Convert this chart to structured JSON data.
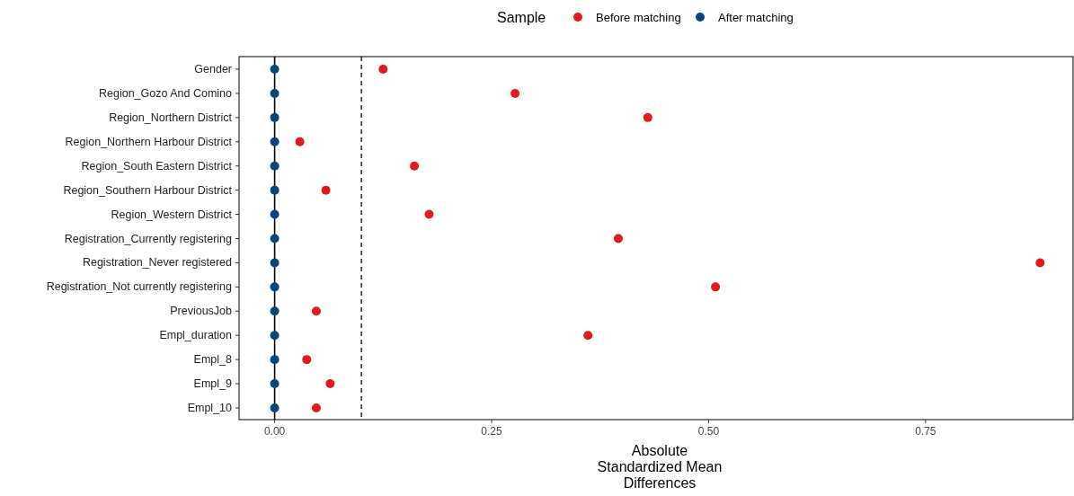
{
  "chart_data": {
    "type": "scatter",
    "orientation": "horizontal",
    "xlabel": "Absolute Standardized Mean Differences",
    "legend_title": "Sample",
    "legend": "top",
    "marker": "circle",
    "grid": false,
    "categories": [
      "Gender",
      "Region_Gozo And Comino",
      "Region_Northern District",
      "Region_Northern Harbour District",
      "Region_South Eastern District",
      "Region_Southern Harbour District",
      "Region_Western District",
      "Registration_Currently registering",
      "Registration_Never registered",
      "Registration_Not currently registering",
      "PreviousJob",
      "Empl_duration",
      "Empl_8",
      "Empl_9",
      "Empl_10"
    ],
    "series": [
      {
        "name": "Before matching",
        "color": "#e31a1c",
        "values": [
          0.125,
          0.277,
          0.43,
          0.029,
          0.161,
          0.059,
          0.178,
          0.396,
          0.882,
          0.508,
          0.048,
          0.361,
          0.037,
          0.064,
          0.048
        ]
      },
      {
        "name": "After matching",
        "color": "#08457e",
        "values": [
          0,
          0,
          0,
          0,
          0,
          0,
          0,
          0,
          0,
          0,
          0,
          0,
          0,
          0,
          0
        ]
      }
    ],
    "xlim": [
      -0.041,
      0.92
    ],
    "xticks": [
      {
        "value": 0,
        "label": "0.00"
      },
      {
        "value": 0.25,
        "label": "0.25"
      },
      {
        "value": 0.5,
        "label": "0.50"
      },
      {
        "value": 0.75,
        "label": "0.75"
      }
    ],
    "ref_lines": [
      {
        "axis": "x",
        "value": 0,
        "color": "#000000",
        "line_style": "solid"
      },
      {
        "axis": "x",
        "value": 0.1,
        "color": "#333333",
        "line_style": "dashed"
      }
    ]
  }
}
